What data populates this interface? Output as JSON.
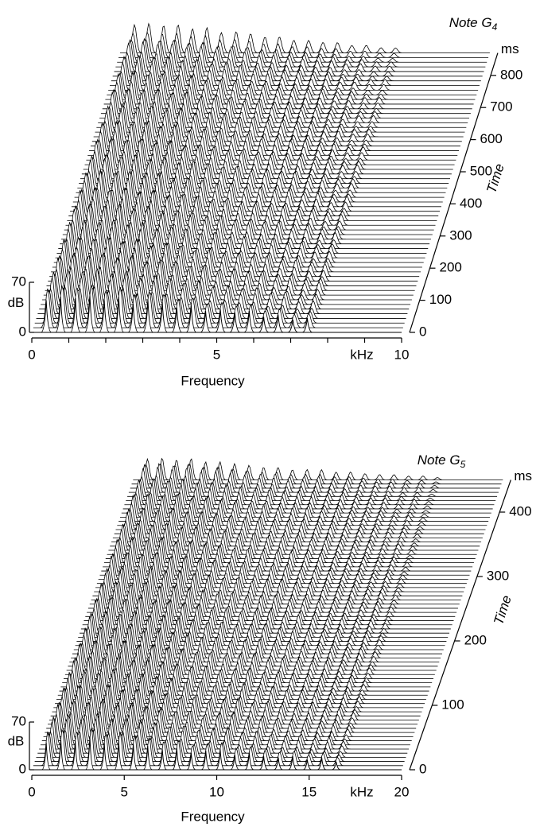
{
  "chart_data": [
    {
      "type": "waterfall",
      "title": "Note G",
      "title_subscript": "4",
      "x_label": "Frequency",
      "x_unit": "kHz",
      "z_unit": "dB",
      "y_label": "Time",
      "y_unit": "ms",
      "x": [
        0.39,
        0.78,
        1.18,
        1.57,
        1.96,
        2.35,
        2.74,
        3.14,
        3.53,
        3.92,
        4.31,
        4.7,
        5.1,
        5.49,
        5.88,
        6.27,
        6.66,
        7.06,
        7.45
      ],
      "values": [
        45,
        50,
        48,
        52,
        45,
        50,
        40,
        45,
        42,
        35,
        38,
        30,
        32,
        28,
        30,
        22,
        25,
        18,
        20
      ],
      "xlim": [
        0,
        10
      ],
      "xticks": [
        0,
        5,
        10
      ],
      "xminor_ticks": [
        1,
        2,
        3,
        4,
        6,
        7,
        8,
        9
      ],
      "zlim": [
        0,
        70
      ],
      "zticks": [
        0,
        70
      ],
      "ylim": [
        0,
        870
      ],
      "yticks": [
        0,
        100,
        200,
        300,
        400,
        500,
        600,
        700,
        800
      ],
      "color": "#000000"
    },
    {
      "type": "waterfall",
      "title": "Note G",
      "title_subscript": "5",
      "x_label": "Frequency",
      "x_unit": "kHz",
      "z_unit": "dB",
      "y_label": "Time",
      "y_unit": "ms",
      "x": [
        0.78,
        1.57,
        2.35,
        3.14,
        3.92,
        4.7,
        5.49,
        6.27,
        7.06,
        7.84,
        8.62,
        9.41,
        10.19,
        10.98,
        11.76,
        12.54,
        13.33,
        14.11,
        14.9,
        15.68,
        16.46
      ],
      "values": [
        40,
        45,
        42,
        48,
        40,
        42,
        38,
        35,
        30,
        32,
        25,
        28,
        30,
        22,
        25,
        20,
        18,
        20,
        15,
        18,
        12
      ],
      "xlim": [
        0,
        20
      ],
      "xticks": [
        0,
        5,
        10,
        15,
        20
      ],
      "xminor_ticks": [],
      "zlim": [
        0,
        70
      ],
      "zticks": [
        0,
        70
      ],
      "ylim": [
        0,
        450
      ],
      "yticks": [
        0,
        100,
        200,
        300,
        400
      ],
      "color": "#000000"
    }
  ]
}
